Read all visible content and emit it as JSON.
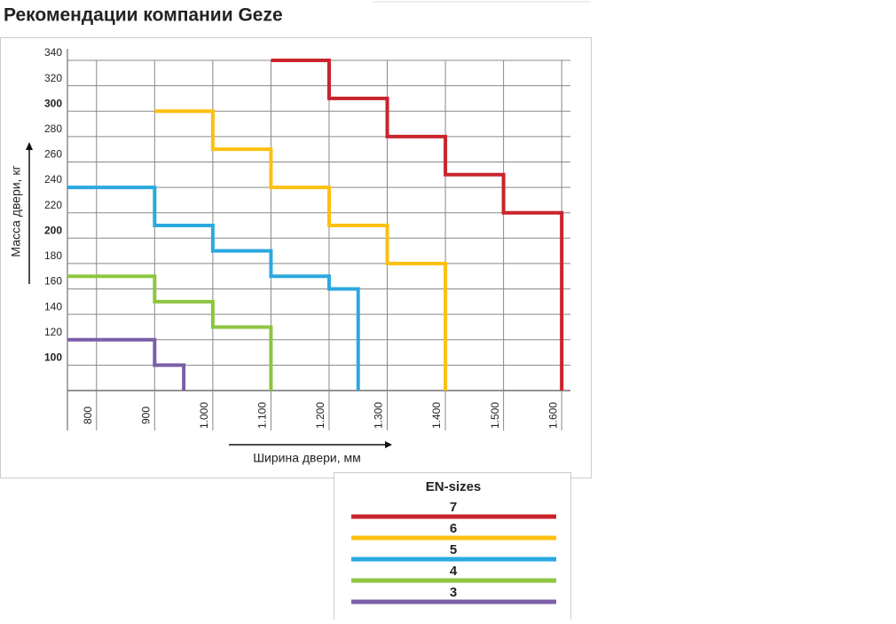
{
  "chart_data": {
    "type": "line",
    "title": "Рекомендации компании Geze",
    "x_label": "Ширина двери, мм",
    "y_label": "Масса двери, кг",
    "legend_title": "EN-sizes",
    "xlim": [
      750,
      1615
    ],
    "ylim": [
      80,
      340
    ],
    "xticks": [
      800,
      900,
      {
        "value": 1000,
        "label": "1.000"
      },
      {
        "value": 1100,
        "label": "1.100"
      },
      {
        "value": 1200,
        "label": "1.200"
      },
      {
        "value": 1300,
        "label": "1.300"
      },
      {
        "value": 1400,
        "label": "1.400"
      },
      {
        "value": 1500,
        "label": "1.500"
      },
      {
        "value": 1600,
        "label": "1.600"
      }
    ],
    "yticks": [
      100,
      120,
      140,
      160,
      180,
      200,
      220,
      240,
      260,
      280,
      300,
      320,
      340
    ],
    "grid": true,
    "series": [
      {
        "name": "7",
        "color": "#c9252c",
        "x": [
          1100,
          1200,
          1200,
          1300,
          1300,
          1400,
          1400,
          1500,
          1500,
          1600,
          1600
        ],
        "values": [
          340,
          340,
          310,
          310,
          280,
          280,
          250,
          250,
          220,
          220,
          80
        ]
      },
      {
        "name": "6",
        "color": "#fdc010",
        "x": [
          900,
          1000,
          1000,
          1100,
          1100,
          1200,
          1200,
          1300,
          1300,
          1400,
          1400
        ],
        "values": [
          300,
          300,
          270,
          270,
          240,
          240,
          210,
          210,
          180,
          180,
          80
        ]
      },
      {
        "name": "5",
        "color": "#2aa9e0",
        "x": [
          750,
          900,
          900,
          1000,
          1000,
          1100,
          1100,
          1200,
          1200,
          1250,
          1250
        ],
        "values": [
          240,
          240,
          210,
          210,
          190,
          190,
          170,
          170,
          160,
          160,
          80
        ]
      },
      {
        "name": "4",
        "color": "#8dc63f",
        "x": [
          750,
          900,
          900,
          1000,
          1000,
          1100,
          1100
        ],
        "values": [
          170,
          170,
          150,
          150,
          130,
          130,
          80
        ]
      },
      {
        "name": "3",
        "color": "#7b5ea7",
        "x": [
          750,
          900,
          900,
          950,
          950
        ],
        "values": [
          120,
          120,
          100,
          100,
          80
        ]
      }
    ]
  }
}
